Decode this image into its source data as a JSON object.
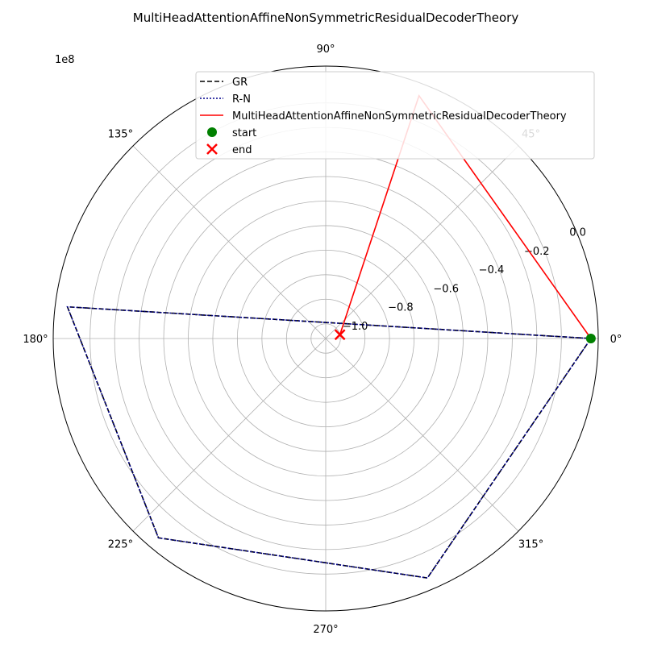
{
  "chart_data": {
    "type": "polar-line",
    "title": "MultiHeadAttentionAffineNonSymmetricResidualDecoderTheory",
    "offset_label": "1e8",
    "theta_tick_labels": [
      "0°",
      "45°",
      "90°",
      "135°",
      "180°",
      "225°",
      "270°",
      "315°"
    ],
    "theta_tick_degrees": [
      0,
      45,
      90,
      135,
      180,
      225,
      270,
      315
    ],
    "r_tick_labels": [
      "−1.0",
      "−0.8",
      "−0.6",
      "−0.4",
      "−0.2",
      "0.0"
    ],
    "r_tick_values": [
      -1.0,
      -0.8,
      -0.6,
      -0.4,
      -0.2,
      0.0
    ],
    "r_grid_values": [
      -1.0,
      -0.9,
      -0.8,
      -0.7,
      -0.6,
      -0.5,
      -0.4,
      -0.3,
      -0.2,
      -0.1
    ],
    "rlim": [
      -1.06,
      0.05
    ],
    "r_label_angle_deg": 22.5,
    "grid": true,
    "legend_position": "top-right",
    "series": [
      {
        "name": "GR",
        "color": "#000000",
        "style": "dashed",
        "points": [
          [
            0,
            0.02
          ],
          [
            293,
            0.0
          ],
          [
            230,
            0.0
          ],
          [
            173,
            0.0
          ],
          [
            0,
            0.02
          ]
        ]
      },
      {
        "name": "R-N",
        "color": "#00008b",
        "style": "dotted",
        "points": [
          [
            0,
            0.02
          ],
          [
            293,
            0.0
          ],
          [
            230,
            0.0
          ],
          [
            173,
            0.0
          ],
          [
            0,
            0.02
          ]
        ]
      },
      {
        "name": "MultiHeadAttentionAffineNonSymmetricResidualDecoderTheory",
        "color": "#ff0000",
        "style": "solid",
        "points": [
          [
            0,
            0.02
          ],
          [
            69,
            0.0
          ],
          [
            15,
            -1.0
          ]
        ]
      }
    ],
    "markers": [
      {
        "name": "start",
        "color": "#008000",
        "shape": "circle",
        "theta": 0,
        "r": 0.02
      },
      {
        "name": "end",
        "color": "#ff0000",
        "shape": "x",
        "theta": 15,
        "r": -1.0
      }
    ]
  }
}
